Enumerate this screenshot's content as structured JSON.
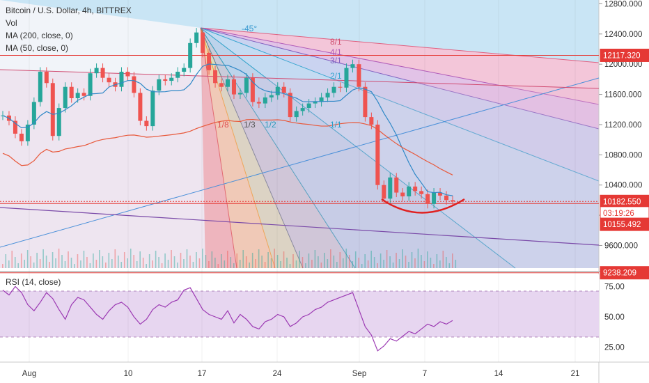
{
  "legend": {
    "title": "Bitcoin / U.S. Dollar, 4h, BITTREX",
    "vol": "Vol",
    "ma200": "MA (200, close, 0)",
    "ma50": "MA (50, close, 0)"
  },
  "rsi_label": "RSI (14, close)",
  "colors": {
    "red_line": "#e53935",
    "ma200": "#e8583a",
    "ma50": "#2f88c7",
    "rsi_line": "#9c3ab3",
    "candle_up": "#26a69a",
    "candle_down": "#ef5350"
  },
  "chart_data": [
    {
      "type": "candlestick",
      "title": "Bitcoin / U.S. Dollar, 4h, BITTREX",
      "y_ticks": [
        "12800.000",
        "12400.000",
        "12000.000",
        "11600.000",
        "11200.000",
        "10800.000",
        "10400.000",
        "10000.000",
        "9600.000"
      ],
      "ylim": [
        9300,
        12850
      ],
      "x_ticks": [
        "Aug",
        "10",
        "17",
        "24",
        "Sep",
        "7",
        "14",
        "21"
      ],
      "price_tags": [
        {
          "label": "12117.320",
          "value": 12117.32,
          "color": "#e53935"
        },
        {
          "label": "10182.550",
          "value": 10182.55,
          "color": "#e53935"
        },
        {
          "label": "03:19:26",
          "value": 10030,
          "color": "#e53935"
        },
        {
          "label": "10155.492",
          "value": 9880,
          "color": "#e53935"
        },
        {
          "label": "9238.209",
          "value": 9238.21,
          "color": "#e53935"
        }
      ],
      "horizontal_lines": [
        12117.32,
        10182.55,
        10155.49,
        9238.21
      ],
      "series_close": [
        11320,
        11250,
        11080,
        10980,
        11200,
        11500,
        11900,
        11750,
        11050,
        11420,
        11700,
        11550,
        11620,
        11580,
        11880,
        11950,
        11820,
        11760,
        11700,
        11900,
        11840,
        11620,
        11250,
        11180,
        11650,
        11800,
        11780,
        11820,
        11900,
        11950,
        12280,
        12420,
        12150,
        11920,
        11750,
        11700,
        11800,
        11600,
        11620,
        11820,
        11500,
        11480,
        11560,
        11590,
        11700,
        11620,
        11300,
        11380,
        11420,
        11480,
        11500,
        11560,
        11620,
        11700,
        11690,
        11950,
        12000,
        11700,
        11300,
        11200,
        10400,
        10220,
        10500,
        10300,
        10250,
        10380,
        10320,
        10280,
        10150,
        10300,
        10260,
        10200,
        10182
      ],
      "fan_labels": [
        "-45°",
        "8/1",
        "4/1",
        "3/1",
        "2/1",
        "1/1",
        "1/2",
        "1/3",
        "1/8"
      ]
    },
    {
      "type": "line",
      "title": "RSI (14, close)",
      "y_ticks": [
        "75.00",
        "50.00",
        "25.00"
      ],
      "ylim": [
        15,
        85
      ],
      "band": [
        30,
        70
      ],
      "values": [
        72,
        68,
        75,
        70,
        60,
        55,
        62,
        70,
        65,
        56,
        48,
        60,
        66,
        64,
        58,
        52,
        48,
        55,
        60,
        62,
        58,
        50,
        44,
        48,
        56,
        60,
        58,
        62,
        64,
        72,
        74,
        65,
        56,
        52,
        50,
        48,
        55,
        45,
        52,
        48,
        42,
        40,
        46,
        48,
        52,
        50,
        42,
        45,
        50,
        52,
        56,
        58,
        62,
        64,
        66,
        68,
        70,
        56,
        42,
        35,
        22,
        26,
        32,
        30,
        34,
        38,
        36,
        40,
        44,
        42,
        46,
        44,
        47
      ]
    }
  ]
}
